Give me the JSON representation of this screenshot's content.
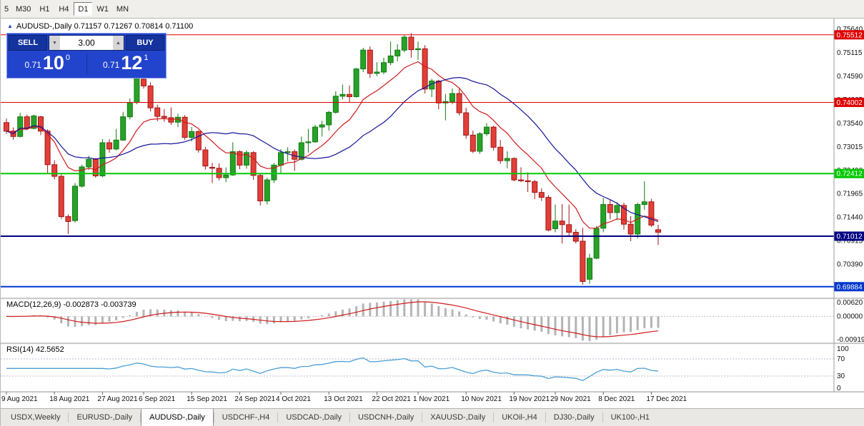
{
  "toolbar": {
    "timeframes": [
      {
        "label": "5",
        "active": false
      },
      {
        "label": "M30",
        "active": false
      },
      {
        "label": "H1",
        "active": false
      },
      {
        "label": "H4",
        "active": false
      },
      {
        "label": "D1",
        "active": true
      },
      {
        "label": "W1",
        "active": false
      },
      {
        "label": "MN",
        "active": false
      }
    ]
  },
  "chart": {
    "title_line": "AUDUSD-,Daily  0.71157 0.71267 0.70814 0.71100"
  },
  "trade_panel": {
    "sell_label": "SELL",
    "buy_label": "BUY",
    "volume": "3.00",
    "sell_price_prefix": "0.71",
    "sell_price_big": "10",
    "sell_price_sup": "0",
    "buy_price_prefix": "0.71",
    "buy_price_big": "12",
    "buy_price_sup": "1"
  },
  "indicators": {
    "macd_label": "MACD(12,26,9) -0.002873 -0.003739",
    "rsi_label": "RSI(14) 42.5652"
  },
  "tabs": {
    "items": [
      {
        "label": "USDX,Weekly",
        "active": false
      },
      {
        "label": "EURUSD-,Daily",
        "active": false
      },
      {
        "label": "AUDUSD-,Daily",
        "active": true
      },
      {
        "label": "USDCHF-,H4",
        "active": false
      },
      {
        "label": "USDCAD-,Daily",
        "active": false
      },
      {
        "label": "USDCNH-,Daily",
        "active": false
      },
      {
        "label": "XAUUSD-,Daily",
        "active": false
      },
      {
        "label": "UKOil-,H4",
        "active": false
      },
      {
        "label": "DJ30-,Daily",
        "active": false
      },
      {
        "label": "UK100-,H1",
        "active": false
      }
    ]
  },
  "chart_data": {
    "type": "candlestick",
    "title": "AUDUSD-,Daily",
    "current_ohlc": {
      "open": 0.71157,
      "high": 0.71267,
      "low": 0.70814,
      "close": 0.711
    },
    "colors": {
      "up": "#27a227",
      "up_border": "#117a11",
      "down": "#e04038",
      "down_border": "#a31515"
    },
    "y_axis": {
      "range": [
        0.69625,
        0.75875
      ],
      "ticks": [
        "0.75640",
        "0.75115",
        "0.74590",
        "0.74065",
        "0.73540",
        "0.73015",
        "0.72490",
        "0.71965",
        "0.71440",
        "0.70915",
        "0.70390"
      ]
    },
    "hlines": [
      {
        "price": 0.75512,
        "label": "0.75512",
        "color": "#e00000",
        "width": 1
      },
      {
        "price": 0.74002,
        "label": "0.74002",
        "color": "#e00000",
        "width": 1
      },
      {
        "price": 0.72412,
        "label": "0.72412",
        "color": "#00c800",
        "width": 2
      },
      {
        "price": 0.71012,
        "label": "0.71012",
        "color": "#000082",
        "width": 2
      },
      {
        "price": 0.69884,
        "label": "0.69884",
        "color": "#0036cc",
        "width": 2
      }
    ],
    "overlays": [
      {
        "name": "ma-fast-line",
        "type": "ema",
        "period": 10,
        "color": "#cf1a1a"
      },
      {
        "name": "ma-slow-line",
        "type": "sma",
        "period": 20,
        "color": "#14149b"
      }
    ],
    "macd": {
      "params": [
        12,
        26,
        9
      ],
      "value": -0.002873,
      "signal_value": -0.003739,
      "range": [
        -0.00919,
        0.0062
      ],
      "axis_labels": [
        "0.00620",
        "0.00000",
        "-0.00919"
      ],
      "histogram_color": "#b4b4b4",
      "signal_color": "#cf1a1a"
    },
    "rsi": {
      "period": 14,
      "value": 42.5652,
      "levels": [
        70,
        30
      ],
      "range": [
        0,
        100
      ],
      "axis_labels": [
        "100",
        "70",
        "30",
        "0"
      ],
      "color": "#4a9fd4"
    },
    "x_labels": [
      {
        "i": 0,
        "text": "9 Aug 2021"
      },
      {
        "i": 7,
        "text": "18 Aug 2021"
      },
      {
        "i": 14,
        "text": "27 Aug 2021"
      },
      {
        "i": 20,
        "text": "6 Sep 2021"
      },
      {
        "i": 27,
        "text": "15 Sep 2021"
      },
      {
        "i": 34,
        "text": "24 Sep 2021"
      },
      {
        "i": 40,
        "text": "4 Oct 2021"
      },
      {
        "i": 47,
        "text": "13 Oct 2021"
      },
      {
        "i": 54,
        "text": "22 Oct 2021"
      },
      {
        "i": 60,
        "text": "1 Nov 2021"
      },
      {
        "i": 67,
        "text": "10 Nov 2021"
      },
      {
        "i": 74,
        "text": "19 Nov 2021"
      },
      {
        "i": 80,
        "text": "29 Nov 2021"
      },
      {
        "i": 87,
        "text": "8 Dec 2021"
      },
      {
        "i": 94,
        "text": "17 Dec 2021"
      }
    ],
    "candles": [
      [
        0.7355,
        0.7364,
        0.733,
        0.7336
      ],
      [
        0.7336,
        0.7344,
        0.7317,
        0.7324
      ],
      [
        0.7324,
        0.7377,
        0.7322,
        0.7368
      ],
      [
        0.7368,
        0.7373,
        0.7338,
        0.7342
      ],
      [
        0.7342,
        0.7373,
        0.734,
        0.737
      ],
      [
        0.7368,
        0.737,
        0.7327,
        0.7336
      ],
      [
        0.7336,
        0.734,
        0.7242,
        0.7261
      ],
      [
        0.7261,
        0.7271,
        0.7228,
        0.7235
      ],
      [
        0.7235,
        0.724,
        0.714,
        0.7145
      ],
      [
        0.7145,
        0.715,
        0.7106,
        0.7134
      ],
      [
        0.7136,
        0.722,
        0.7132,
        0.7213
      ],
      [
        0.7213,
        0.7261,
        0.721,
        0.7256
      ],
      [
        0.7256,
        0.7281,
        0.7249,
        0.7273
      ],
      [
        0.7273,
        0.7276,
        0.7232,
        0.7236
      ],
      [
        0.7236,
        0.7318,
        0.7233,
        0.731
      ],
      [
        0.731,
        0.7318,
        0.7288,
        0.7296
      ],
      [
        0.7296,
        0.7341,
        0.7293,
        0.7316
      ],
      [
        0.7316,
        0.7379,
        0.7314,
        0.7368
      ],
      [
        0.7368,
        0.7409,
        0.7362,
        0.74
      ],
      [
        0.74,
        0.7478,
        0.7396,
        0.7455
      ],
      [
        0.7452,
        0.7462,
        0.7431,
        0.7437
      ],
      [
        0.7437,
        0.7445,
        0.738,
        0.7388
      ],
      [
        0.7388,
        0.7395,
        0.7358,
        0.7369
      ],
      [
        0.7369,
        0.7385,
        0.7357,
        0.7366
      ],
      [
        0.7366,
        0.7389,
        0.735,
        0.7356
      ],
      [
        0.7356,
        0.7375,
        0.7345,
        0.7367
      ],
      [
        0.7367,
        0.7372,
        0.7316,
        0.7322
      ],
      [
        0.7322,
        0.7345,
        0.7313,
        0.7335
      ],
      [
        0.7335,
        0.7338,
        0.7288,
        0.7294
      ],
      [
        0.7294,
        0.7301,
        0.725,
        0.7258
      ],
      [
        0.7255,
        0.7265,
        0.722,
        0.7253
      ],
      [
        0.7253,
        0.7264,
        0.7226,
        0.7232
      ],
      [
        0.7232,
        0.7255,
        0.7222,
        0.7238
      ],
      [
        0.7238,
        0.7311,
        0.7236,
        0.729
      ],
      [
        0.729,
        0.7293,
        0.7251,
        0.726
      ],
      [
        0.726,
        0.7293,
        0.7252,
        0.7288
      ],
      [
        0.7288,
        0.7291,
        0.7227,
        0.7237
      ],
      [
        0.7237,
        0.7242,
        0.717,
        0.718
      ],
      [
        0.718,
        0.7232,
        0.7172,
        0.7227
      ],
      [
        0.7227,
        0.7265,
        0.722,
        0.726
      ],
      [
        0.726,
        0.7296,
        0.724,
        0.7288
      ],
      [
        0.7288,
        0.73,
        0.7268,
        0.729
      ],
      [
        0.729,
        0.7295,
        0.7247,
        0.7273
      ],
      [
        0.7273,
        0.7324,
        0.727,
        0.731
      ],
      [
        0.731,
        0.7341,
        0.7288,
        0.7312
      ],
      [
        0.7312,
        0.735,
        0.731,
        0.7345
      ],
      [
        0.7345,
        0.7359,
        0.7324,
        0.735
      ],
      [
        0.735,
        0.7381,
        0.7337,
        0.7378
      ],
      [
        0.7378,
        0.7425,
        0.7375,
        0.7414
      ],
      [
        0.7414,
        0.744,
        0.7407,
        0.7418
      ],
      [
        0.7418,
        0.7438,
        0.7401,
        0.7413
      ],
      [
        0.7413,
        0.7477,
        0.7411,
        0.7475
      ],
      [
        0.7475,
        0.7522,
        0.7468,
        0.7517
      ],
      [
        0.7517,
        0.7525,
        0.7455,
        0.7465
      ],
      [
        0.7465,
        0.749,
        0.7459,
        0.7468
      ],
      [
        0.7468,
        0.75,
        0.7463,
        0.7489
      ],
      [
        0.7489,
        0.7536,
        0.7483,
        0.7504
      ],
      [
        0.7504,
        0.753,
        0.7492,
        0.7517
      ],
      [
        0.7517,
        0.7551,
        0.7512,
        0.7546
      ],
      [
        0.7546,
        0.7555,
        0.75,
        0.7518
      ],
      [
        0.7518,
        0.7536,
        0.7495,
        0.752
      ],
      [
        0.752,
        0.7528,
        0.742,
        0.743
      ],
      [
        0.743,
        0.7453,
        0.7412,
        0.7448
      ],
      [
        0.7448,
        0.7451,
        0.7385,
        0.7399
      ],
      [
        0.7399,
        0.7419,
        0.736,
        0.7402
      ],
      [
        0.7402,
        0.7431,
        0.7396,
        0.742
      ],
      [
        0.742,
        0.7432,
        0.7371,
        0.7377
      ],
      [
        0.7377,
        0.7388,
        0.7319,
        0.7327
      ],
      [
        0.7327,
        0.7337,
        0.7287,
        0.7291
      ],
      [
        0.7291,
        0.7334,
        0.7285,
        0.733
      ],
      [
        0.733,
        0.7354,
        0.7325,
        0.7345
      ],
      [
        0.7345,
        0.7348,
        0.7293,
        0.73
      ],
      [
        0.73,
        0.7316,
        0.7263,
        0.727
      ],
      [
        0.727,
        0.7291,
        0.7253,
        0.7275
      ],
      [
        0.7275,
        0.7277,
        0.7224,
        0.7227
      ],
      [
        0.7227,
        0.7255,
        0.7222,
        0.7225
      ],
      [
        0.7225,
        0.7244,
        0.72,
        0.7223
      ],
      [
        0.7223,
        0.7227,
        0.7184,
        0.7199
      ],
      [
        0.7199,
        0.7208,
        0.718,
        0.7188
      ],
      [
        0.7188,
        0.7193,
        0.7112,
        0.7115
      ],
      [
        0.7118,
        0.7172,
        0.711,
        0.7135
      ],
      [
        0.7135,
        0.7173,
        0.7085,
        0.7127
      ],
      [
        0.7127,
        0.7172,
        0.71,
        0.711
      ],
      [
        0.711,
        0.7117,
        0.7085,
        0.709
      ],
      [
        0.709,
        0.712,
        0.6993,
        0.7
      ],
      [
        0.7005,
        0.7062,
        0.6995,
        0.7052
      ],
      [
        0.7052,
        0.7124,
        0.705,
        0.7119
      ],
      [
        0.7119,
        0.7187,
        0.711,
        0.7172
      ],
      [
        0.7172,
        0.7182,
        0.7139,
        0.7154
      ],
      [
        0.7154,
        0.7177,
        0.7137,
        0.717
      ],
      [
        0.717,
        0.7176,
        0.7116,
        0.7128
      ],
      [
        0.7128,
        0.7146,
        0.709,
        0.7106
      ],
      [
        0.7106,
        0.7176,
        0.7096,
        0.7172
      ],
      [
        0.7172,
        0.7224,
        0.716,
        0.7178
      ],
      [
        0.7178,
        0.7185,
        0.7122,
        0.7126
      ],
      [
        0.71157,
        0.71267,
        0.70814,
        0.711
      ]
    ]
  }
}
